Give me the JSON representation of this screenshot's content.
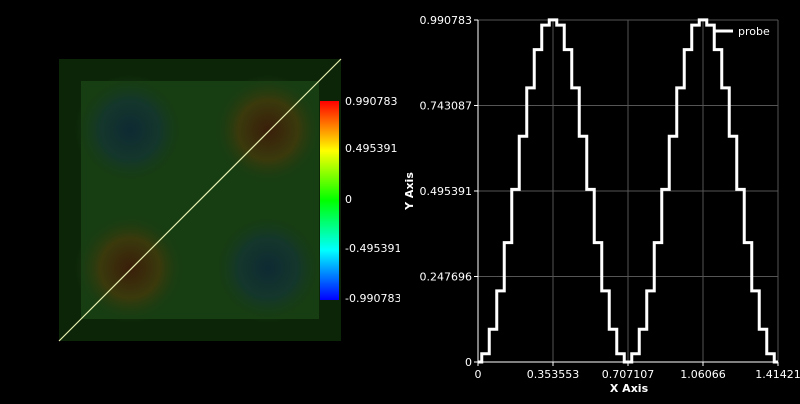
{
  "render_view": {
    "colorbar": {
      "labels": [
        "0.990783",
        "0.495391",
        "0",
        "-0.495391",
        "-0.990783"
      ]
    }
  },
  "chart_data": {
    "type": "line",
    "xlabel": "X Axis",
    "ylabel": "Y Axis",
    "xlim": [
      0,
      1.41421
    ],
    "ylim": [
      0,
      0.990783
    ],
    "x_ticks": [
      "0",
      "0.353553",
      "0.707107",
      "1.06066",
      "1.41421"
    ],
    "y_ticks": [
      "0",
      "0.247696",
      "0.495391",
      "0.743087",
      "0.990783"
    ],
    "grid": true,
    "legend_position": "top-right",
    "series": [
      {
        "name": "probe",
        "color": "#ffffff",
        "x": [
          0,
          0.0354,
          0.0707,
          0.1061,
          0.1414,
          0.1768,
          0.2121,
          0.2475,
          0.2828,
          0.3182,
          0.3536,
          0.3889,
          0.4243,
          0.4596,
          0.495,
          0.5303,
          0.5657,
          0.601,
          0.6364,
          0.6718,
          0.7071,
          0.7425,
          0.7778,
          0.8132,
          0.8485,
          0.8839,
          0.9192,
          0.9546,
          0.9899,
          1.0253,
          1.0607,
          1.096,
          1.1314,
          1.1667,
          1.2021,
          1.2374,
          1.2728,
          1.3081,
          1.3435,
          1.3789,
          1.4142
        ],
        "y": [
          0,
          0.024,
          0.095,
          0.206,
          0.346,
          0.5,
          0.654,
          0.794,
          0.905,
          0.976,
          0.991,
          0.976,
          0.905,
          0.794,
          0.654,
          0.5,
          0.346,
          0.206,
          0.095,
          0.024,
          0,
          0.024,
          0.095,
          0.206,
          0.346,
          0.5,
          0.654,
          0.794,
          0.905,
          0.976,
          0.991,
          0.976,
          0.905,
          0.794,
          0.654,
          0.5,
          0.346,
          0.206,
          0.095,
          0.024,
          0
        ]
      }
    ]
  }
}
